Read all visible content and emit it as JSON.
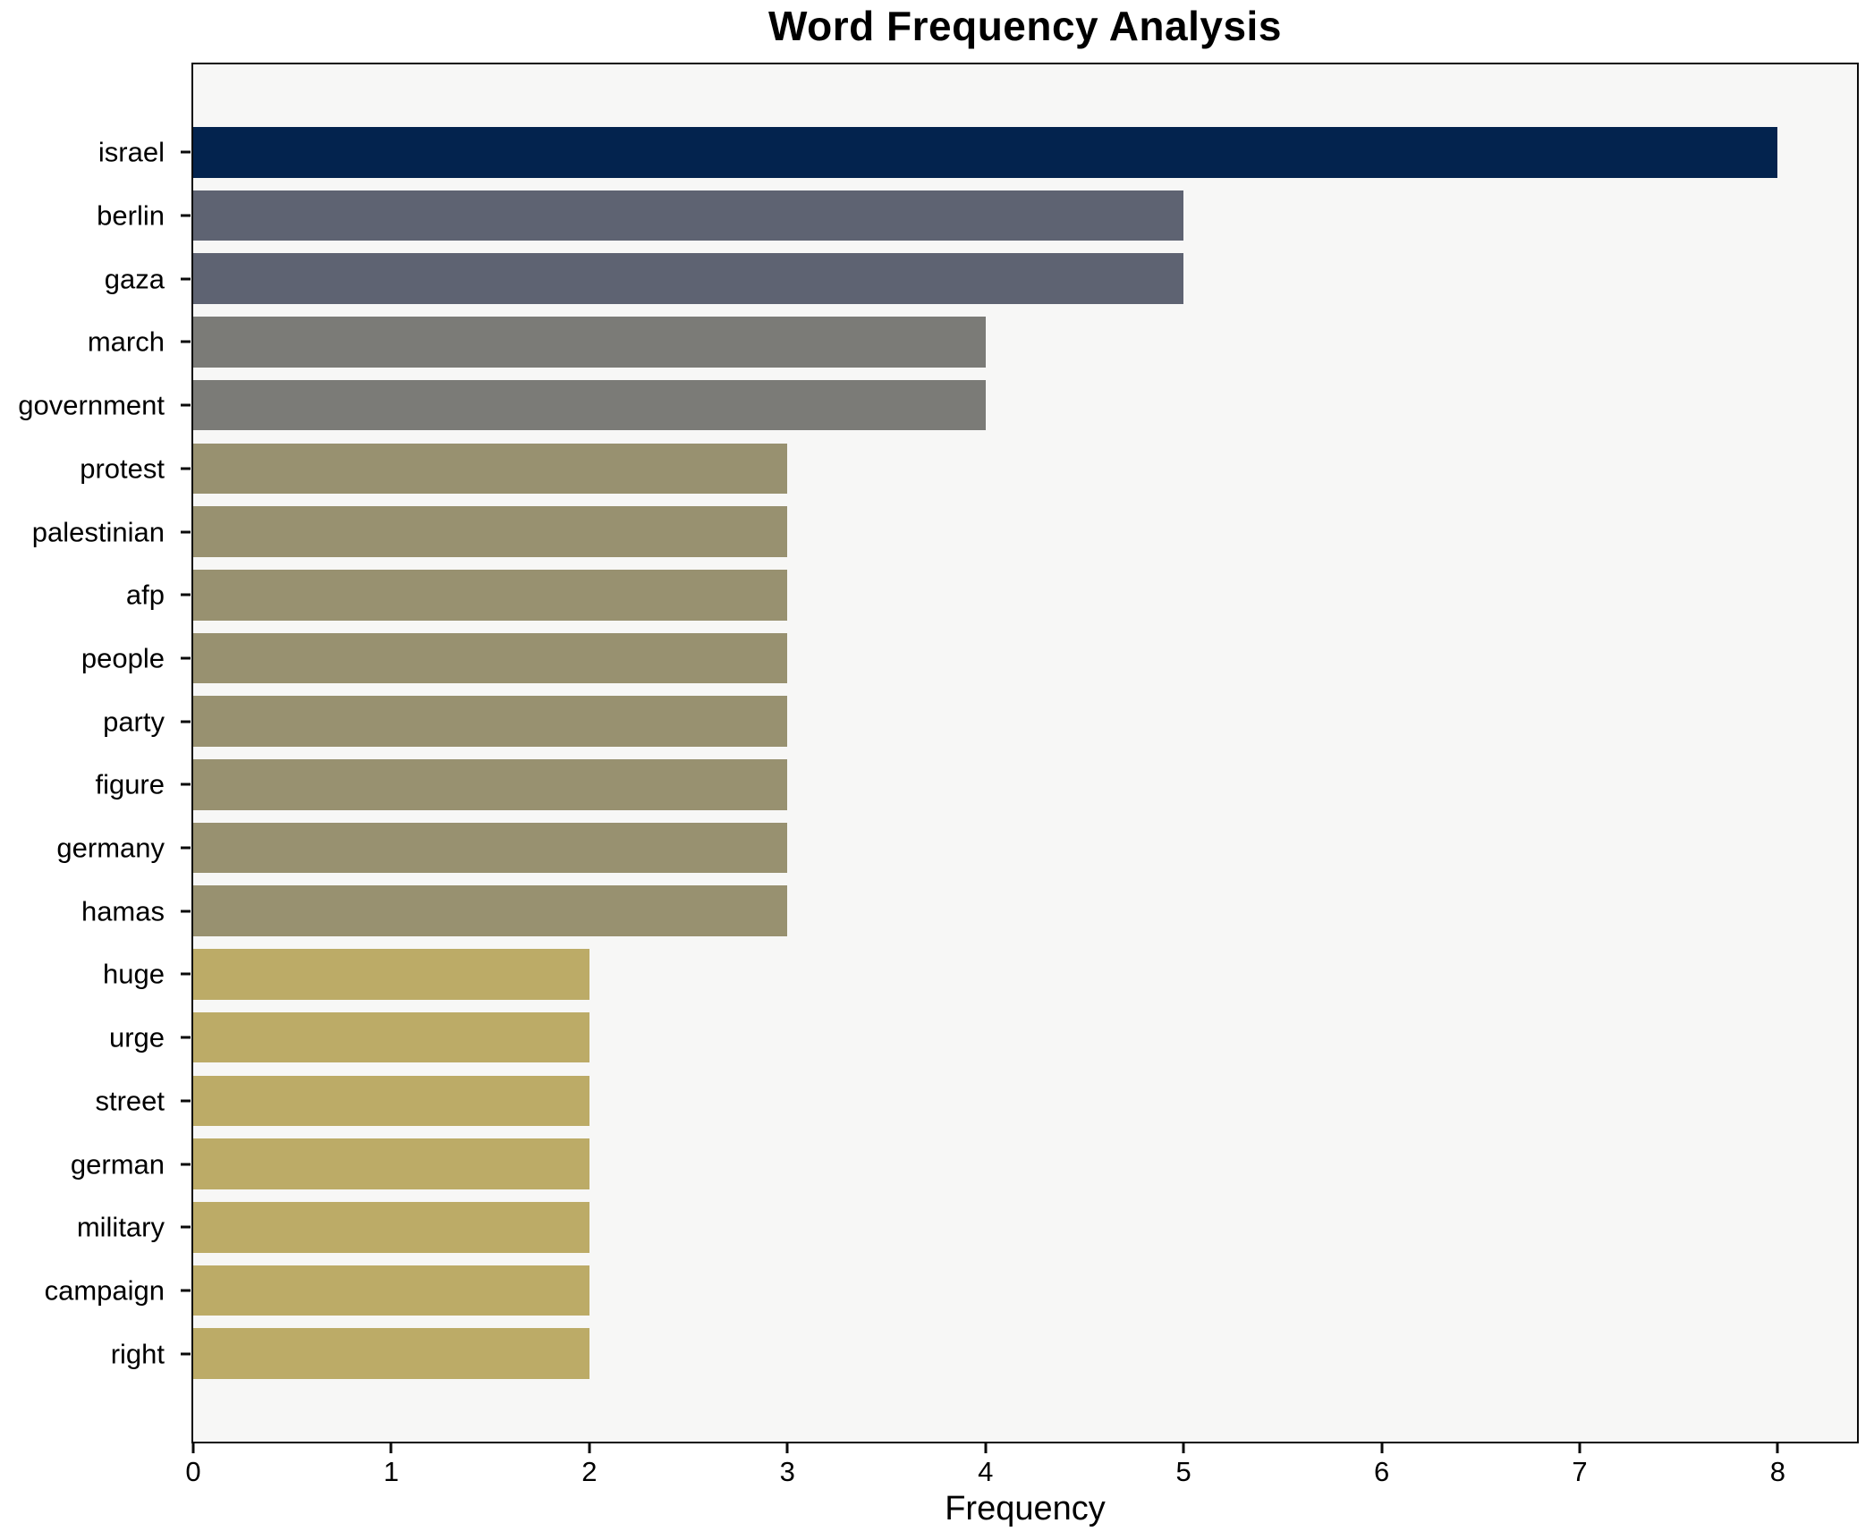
{
  "chart_data": {
    "type": "bar",
    "orientation": "horizontal",
    "title": "Word Frequency Analysis",
    "xlabel": "Frequency",
    "ylabel": "",
    "categories": [
      "israel",
      "berlin",
      "gaza",
      "march",
      "government",
      "protest",
      "palestinian",
      "afp",
      "people",
      "party",
      "figure",
      "germany",
      "hamas",
      "huge",
      "urge",
      "street",
      "german",
      "military",
      "campaign",
      "right"
    ],
    "values": [
      8,
      5,
      5,
      4,
      4,
      3,
      3,
      3,
      3,
      3,
      3,
      3,
      3,
      2,
      2,
      2,
      2,
      2,
      2,
      2
    ],
    "bar_colors": [
      "#03234e",
      "#5e6372",
      "#5e6372",
      "#7b7b77",
      "#7b7b77",
      "#989170",
      "#989170",
      "#989170",
      "#989170",
      "#989170",
      "#989170",
      "#989170",
      "#989170",
      "#bcab67",
      "#bcab67",
      "#bcab67",
      "#bcab67",
      "#bcab67",
      "#bcab67",
      "#bcab67"
    ],
    "x_ticks": [
      0,
      1,
      2,
      3,
      4,
      5,
      6,
      7,
      8
    ],
    "x_tick_labels": [
      "0",
      "1",
      "2",
      "3",
      "4",
      "5",
      "6",
      "7",
      "8"
    ],
    "xlim": [
      0,
      8.4
    ],
    "grid": false,
    "legend": null,
    "plot_background": "#f7f7f6",
    "figure_background": "#ffffff",
    "spine_color": "#0a0a0a",
    "title_color": "#000000",
    "tick_label_color": "#000000"
  }
}
